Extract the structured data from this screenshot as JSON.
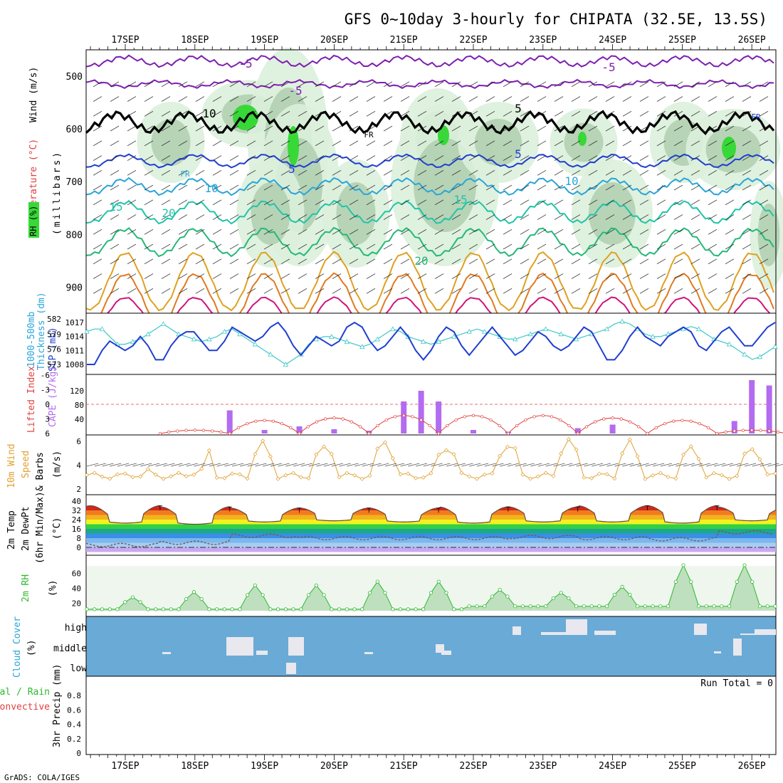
{
  "title": "GFS 0~10day 3-hourly for CHIPATA (32.5E, 13.5S)",
  "footer": "GrADS: COLA/IGES",
  "date_labels": [
    "17SEP",
    "18SEP",
    "19SEP",
    "20SEP",
    "21SEP",
    "22SEP",
    "23SEP",
    "24SEP",
    "25SEP",
    "26SEP"
  ],
  "colors": {
    "axis": "#000000",
    "grid": "#aaaaaa",
    "purple": "#7d1fb0",
    "black": "#000000",
    "blue": "#1f3fcf",
    "cyan": "#2aa5d8",
    "teal": "#22c3a8",
    "green": "#25b878",
    "orange": "#e0a020",
    "dorange": "#e07a20",
    "magenta": "#d0147a",
    "rh_light": "#dcefdc",
    "rh_mid": "#a9c9a9",
    "rh_green": "#38d838",
    "slp_line": "#1f3fcf",
    "thick_line": "#3ec8c8",
    "li_line": "#e04040",
    "cape_bar": "#b36bf0",
    "wind_line": "#e0a030",
    "cloud_bg": "#6aaad6",
    "cloud_fill": "#e8e8ee",
    "rh2m_line": "#2fb82f"
  },
  "panels": {
    "upper": {
      "ylabel_wind": "Wind (m/s)",
      "ylabel_temp": "Temperature (°C)",
      "ylabel_rh": "RH (%)",
      "ylabel_mb": "(millibars)",
      "yticks": [
        "500",
        "600",
        "700",
        "800",
        "900"
      ],
      "contour_labels": [
        "-5",
        "-5",
        "-5",
        "5",
        "10",
        "15",
        "20",
        "10",
        "15",
        "5",
        "20",
        "10",
        "5",
        "FR",
        "FR",
        "FR"
      ]
    },
    "slp": {
      "label1": "1000-500mb",
      "label2": "Thickness (dm)",
      "label3": "SLP (mb)",
      "left_ticks": [
        "582",
        "579",
        "576",
        "573"
      ],
      "right_ticks": [
        "1017",
        "1014",
        "1011",
        "1008"
      ]
    },
    "cape": {
      "label1": "Lifted Index",
      "label2": "CAPE (J/kg)",
      "left_ticks": [
        "-6",
        "-3",
        "0",
        "3",
        "6"
      ],
      "right_ticks": [
        "120",
        "80",
        "40"
      ]
    },
    "wind": {
      "label1": "10m Wind",
      "label2": "Speed",
      "label3": "& Barbs",
      "unit": "(m/s)",
      "ticks": [
        "6",
        "4",
        "2"
      ]
    },
    "temp": {
      "label1": "2m Temp",
      "label2": "2m DewPt",
      "label3": "(6hr Min/Max)",
      "unit": "(°C)",
      "ticks": [
        "40",
        "32",
        "24",
        "16",
        "8",
        "0"
      ]
    },
    "rh2m": {
      "label": "2m RH",
      "unit": "(%)",
      "ticks": [
        "60",
        "40",
        "20"
      ]
    },
    "cloud": {
      "label": "Cloud Cover",
      "unit": "(%)",
      "levels": [
        "high",
        "middle",
        "low"
      ]
    },
    "precip": {
      "label1": "Total / Rain",
      "label2": "Convective",
      "label3": "3hr Precip (mm)",
      "ticks": [
        "0.8",
        "0.6",
        "0.4",
        "0.2",
        "0"
      ],
      "run_total": "Run Total = 0"
    }
  },
  "chart_data": [
    {
      "type": "line",
      "title": "SLP (mb) and 1000-500mb Thickness (dm)",
      "x": "3-hourly steps, 17SEP to 26SEP",
      "series": [
        {
          "name": "SLP (mb)",
          "values": [
            1008,
            1008,
            1011,
            1013,
            1012,
            1011,
            1012,
            1014,
            1012,
            1009,
            1009,
            1012,
            1014,
            1015,
            1015,
            1013,
            1011,
            1011,
            1013,
            1016,
            1015,
            1014,
            1013,
            1014,
            1016,
            1017,
            1015,
            1012,
            1010,
            1012,
            1014,
            1013,
            1012,
            1013,
            1016,
            1017,
            1016,
            1013,
            1011,
            1012,
            1014,
            1016,
            1014,
            1011,
            1009,
            1011,
            1014,
            1016,
            1015,
            1012,
            1010,
            1012,
            1014,
            1016,
            1014,
            1012,
            1010,
            1011,
            1013,
            1015,
            1014,
            1012,
            1011,
            1012,
            1014,
            1016,
            1015,
            1012,
            1009,
            1009,
            1011,
            1014,
            1016,
            1014,
            1013,
            1012,
            1014,
            1015,
            1016,
            1015,
            1012,
            1011,
            1013,
            1015,
            1016,
            1014,
            1012,
            1012,
            1014,
            1016,
            1017
          ]
        },
        {
          "name": "Thickness (dm)",
          "values": [
            579.5,
            580,
            580,
            578.5,
            577,
            577,
            577.5,
            578,
            579,
            580,
            581,
            580,
            579,
            578.5,
            578,
            577.5,
            578,
            578.5,
            579.5,
            580,
            579,
            578,
            577,
            576,
            575,
            574,
            573,
            574,
            575,
            577,
            578,
            578.5,
            578.5,
            578,
            577.5,
            577,
            576.5,
            577,
            578,
            579,
            580,
            579.5,
            578.5,
            578,
            577.5,
            577,
            577.5,
            578,
            578.5,
            579,
            579.5,
            580,
            579.5,
            579,
            578.5,
            578,
            578,
            578.5,
            579,
            579.5,
            580,
            579.5,
            579,
            578.5,
            578,
            578.5,
            579,
            579.5,
            580,
            581,
            581.5,
            581,
            580,
            579,
            578.5,
            578.5,
            579,
            579.5,
            580,
            580.5,
            580,
            579,
            578,
            577.5,
            577,
            576,
            575,
            574,
            574.5,
            575.5,
            576.5
          ]
        }
      ],
      "ylim_left": [
        573,
        582
      ],
      "ylim_right": [
        1008,
        1017
      ]
    },
    {
      "type": "bar",
      "title": "CAPE (J/kg) and Lifted Index",
      "categories": [
        "17SEP",
        "18SEP",
        "19SEP",
        "20SEP",
        "21SEP",
        "22SEP",
        "23SEP",
        "24SEP",
        "25SEP",
        "26SEP"
      ],
      "series": [
        {
          "name": "CAPE max (J/kg)",
          "values": [
            0,
            0,
            65,
            120,
            25,
            150,
            15,
            5,
            0,
            30
          ]
        },
        {
          "name": "Lifted Index min",
          "values": [
            6,
            2,
            1,
            0,
            0,
            0,
            1,
            2,
            6,
            3
          ]
        }
      ],
      "ylim": [
        0,
        160
      ]
    },
    {
      "type": "line",
      "title": "10m Wind Speed (m/s)",
      "categories": [
        "17SEP",
        "18SEP",
        "19SEP",
        "20SEP",
        "21SEP",
        "22SEP",
        "23SEP",
        "24SEP",
        "25SEP",
        "26SEP"
      ],
      "series": [
        {
          "name": "daily max",
          "values": [
            3.2,
            3.6,
            5.8,
            5.4,
            6.0,
            5.5,
            5.7,
            6.1,
            5.9,
            5.4
          ]
        }
      ],
      "ylim": [
        1.5,
        6.5
      ]
    },
    {
      "type": "area",
      "title": "2m Temp (°C)",
      "categories": [
        "17SEP",
        "18SEP",
        "19SEP",
        "20SEP",
        "21SEP",
        "22SEP",
        "23SEP",
        "24SEP",
        "25SEP",
        "26SEP"
      ],
      "series": [
        {
          "name": "max",
          "values": [
            36,
            35,
            34,
            34,
            34,
            35,
            35,
            36,
            36,
            35
          ]
        },
        {
          "name": "min",
          "values": [
            21,
            20,
            22,
            23,
            22,
            21,
            22,
            22,
            21,
            23
          ]
        },
        {
          "name": "dewpt",
          "values": [
            2,
            4,
            10,
            8,
            8,
            8,
            9,
            8,
            7,
            13
          ]
        }
      ],
      "ylim": [
        -4,
        40
      ]
    },
    {
      "type": "area",
      "title": "2m RH (%)",
      "categories": [
        "17SEP",
        "18SEP",
        "19SEP",
        "20SEP",
        "21SEP",
        "22SEP",
        "23SEP",
        "24SEP",
        "25SEP",
        "26SEP"
      ],
      "series": [
        {
          "name": "daily max",
          "values": [
            28,
            35,
            44,
            44,
            49,
            49,
            38,
            34,
            42,
            71
          ]
        }
      ],
      "ylim": [
        0,
        72
      ]
    },
    {
      "type": "bar",
      "title": "3hr Precip (mm)",
      "categories": [
        "17SEP",
        "18SEP",
        "19SEP",
        "20SEP",
        "21SEP",
        "22SEP",
        "23SEP",
        "24SEP",
        "25SEP",
        "26SEP"
      ],
      "values": [
        0,
        0,
        0,
        0,
        0,
        0,
        0,
        0,
        0,
        0
      ],
      "ylim": [
        0,
        0.95
      ]
    }
  ]
}
